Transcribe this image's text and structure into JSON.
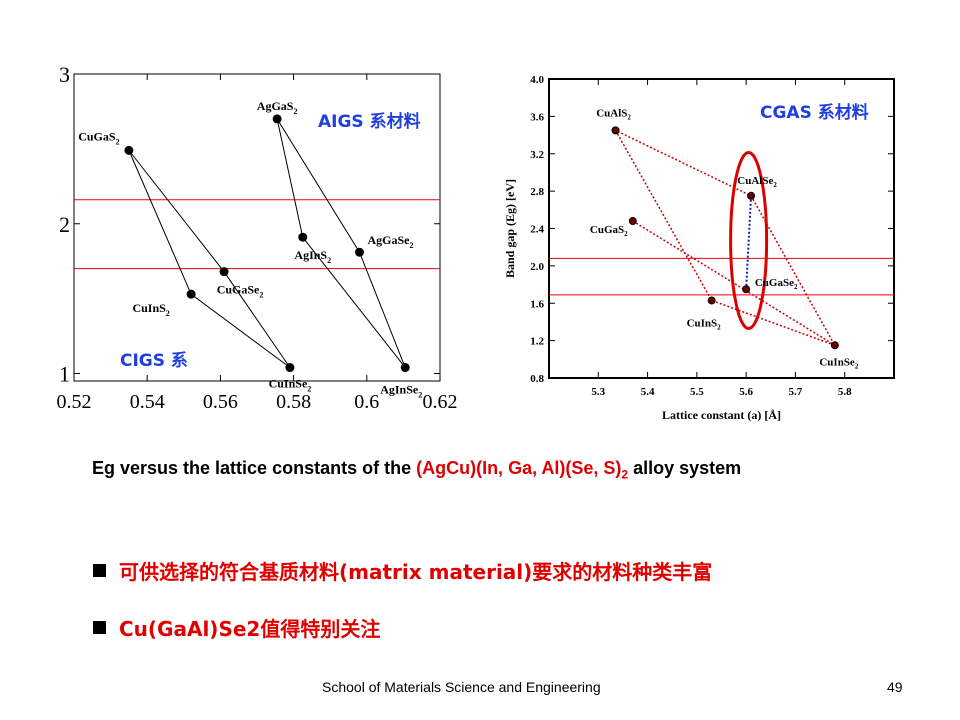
{
  "chart_data": [
    {
      "type": "scatter",
      "xlim": [
        0.52,
        0.62
      ],
      "ylim": [
        0.95,
        3.0
      ],
      "x_ticks": [
        "0.52",
        "0.54",
        "0.56",
        "0.58",
        "0.6",
        "0.62"
      ],
      "y_ticks": [
        "1",
        "2",
        "3"
      ],
      "grid": false,
      "points": [
        {
          "label": "CuGaS2",
          "x": 0.535,
          "y": 2.49
        },
        {
          "label": "CuInS2",
          "x": 0.552,
          "y": 1.53
        },
        {
          "label": "CuGaSe2",
          "x": 0.561,
          "y": 1.68
        },
        {
          "label": "CuInSe2",
          "x": 0.579,
          "y": 1.04
        },
        {
          "label": "AgGaS2",
          "x": 0.5755,
          "y": 2.7
        },
        {
          "label": "AgInS2",
          "x": 0.5825,
          "y": 1.91
        },
        {
          "label": "AgGaSe2",
          "x": 0.598,
          "y": 1.81
        },
        {
          "label": "AgInSe2",
          "x": 0.6105,
          "y": 1.04
        }
      ],
      "polygons": [
        [
          "CuGaS2",
          "CuInS2",
          "CuInSe2",
          "CuGaSe2"
        ],
        [
          "AgGaS2",
          "AgInS2",
          "AgInSe2",
          "AgGaSe2"
        ]
      ],
      "hlines": [
        2.16,
        1.7
      ],
      "annotations": [
        "AIGS 系材料",
        "CIGS 系"
      ]
    },
    {
      "type": "scatter",
      "xlabel": "Lattice constant (a) [Å]",
      "ylabel": "Band gap (Eg) [eV]",
      "xlim": [
        5.2,
        5.9
      ],
      "ylim": [
        0.8,
        4.0
      ],
      "x_ticks": [
        "5.3",
        "5.4",
        "5.5",
        "5.6",
        "5.7",
        "5.8"
      ],
      "y_ticks": [
        "0.8",
        "1.2",
        "1.6",
        "2.0",
        "2.4",
        "2.8",
        "3.2",
        "3.6",
        "4.0"
      ],
      "grid": false,
      "points": [
        {
          "label": "CuAlS2",
          "x": 5.335,
          "y": 3.45
        },
        {
          "label": "CuAlSe2",
          "x": 5.61,
          "y": 2.75
        },
        {
          "label": "CuGaS2",
          "x": 5.37,
          "y": 2.48
        },
        {
          "label": "CuGaSe2",
          "x": 5.6,
          "y": 1.75
        },
        {
          "label": "CuInS2",
          "x": 5.53,
          "y": 1.63
        },
        {
          "label": "CuInSe2",
          "x": 5.78,
          "y": 1.15
        }
      ],
      "polygons": [
        [
          "CuAlS2",
          "CuInS2",
          "CuInSe2",
          "CuAlSe2"
        ],
        [
          "CuGaS2",
          "CuInSe2"
        ]
      ],
      "dotted_blue": [
        "CuAlSe2",
        "CuGaSe2"
      ],
      "hlines": [
        2.08,
        1.69
      ],
      "annotations": [
        "CGAS 系材料"
      ]
    }
  ],
  "caption": {
    "prefix": "Eg versus the lattice constants of the ",
    "highlight": "(AgCu)(In, Ga, Al)(Se, S)",
    "sub": "2",
    "suffix": " alloy system"
  },
  "bullets": [
    "可供选择的符合基质材料(matrix material)要求的材料种类丰富",
    "Cu(GaAl)Se2值得特别关注"
  ],
  "footer": {
    "school": "School of Materials Science and Engineering",
    "page": "49"
  },
  "colors": {
    "red_line": "#e8000b",
    "blue_text": "#1f3fe0",
    "dotted_red": "#c80000",
    "dotted_blue": "#1020c0"
  }
}
